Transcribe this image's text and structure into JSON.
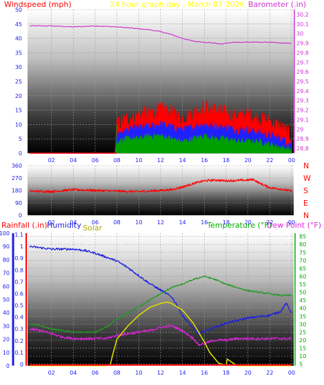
{
  "header": {
    "left_label": "Windspeed (mph)",
    "center_title": "24 hour graph day : March 07 2026",
    "right_label": "Barometer (.in)"
  },
  "colors": {
    "windspeed_label": "#ff0000",
    "title": "#ffff00",
    "barometer": "#cc33cc",
    "wind_avg": "#00a000",
    "wind_mid": "#2020ff",
    "wind_gust": "#ff0000",
    "direction": "#ff0000",
    "rainfall": "#ff0000",
    "humidity": "#2020dd",
    "solar": "#dddd00",
    "temperature": "#229922",
    "dewpoint": "#dd22dd",
    "right_axis_temp": "#00aa00",
    "axis_blue": "#1a1aee"
  },
  "bottom_header": {
    "rainfall_label": "Rainfall (.in)",
    "humidity_label": "Humidity",
    "solar_label": "Solar",
    "temperature_label": "Temperature (°F)",
    "dewpoint_label": "Dew Point (°F)"
  },
  "chart_data": [
    {
      "id": "wind-baro",
      "type": "line",
      "x_ticks": [
        "02",
        "04",
        "06",
        "08",
        "10",
        "12",
        "14",
        "16",
        "18",
        "20",
        "22",
        "00"
      ],
      "left_axis": {
        "ticks": [
          "0",
          "5",
          "10",
          "15",
          "20",
          "25",
          "30",
          "35",
          "40",
          "45",
          "50"
        ],
        "ylim": [
          0,
          50
        ]
      },
      "right_axis": {
        "ticks": [
          "28.8",
          "28.9",
          "29",
          "29.1",
          "29.2",
          "29.3",
          "29.4",
          "29.5",
          "29.6",
          "29.7",
          "29.8",
          "29.9",
          "30",
          "30.1",
          "30.2"
        ],
        "ylim": [
          28.75,
          30.25
        ]
      },
      "series": [
        {
          "key": "barometer",
          "axis": "right",
          "x": [
            0,
            2,
            4,
            6,
            8,
            10,
            11,
            12,
            13,
            14,
            15,
            16,
            17,
            17.5,
            18,
            19,
            20,
            21,
            22,
            23,
            24
          ],
          "values": [
            30.08,
            30.08,
            30.07,
            30.08,
            30.07,
            30.05,
            30.04,
            30.02,
            29.99,
            29.95,
            29.92,
            29.91,
            29.9,
            29.89,
            29.9,
            29.91,
            29.91,
            29.91,
            29.91,
            29.9,
            29.9
          ]
        },
        {
          "key": "wind_gust",
          "axis": "left",
          "x": [
            0,
            7.8,
            8,
            9,
            10,
            11,
            12,
            13,
            14,
            15,
            16,
            17,
            18,
            19,
            20,
            21,
            22,
            23,
            24
          ],
          "values": [
            0,
            0,
            10,
            12,
            13,
            14,
            15,
            14,
            12,
            14,
            16,
            15,
            14,
            13,
            13,
            12,
            11,
            9,
            6
          ]
        },
        {
          "key": "wind_mid",
          "axis": "left",
          "x": [
            0,
            7.8,
            8,
            9,
            10,
            11,
            12,
            13,
            14,
            15,
            16,
            17,
            18,
            19,
            20,
            21,
            22,
            23,
            24
          ],
          "values": [
            0,
            0,
            7,
            8,
            9,
            9,
            10,
            9,
            8,
            9,
            10,
            9,
            9,
            8,
            8,
            7,
            6,
            5,
            3
          ]
        },
        {
          "key": "wind_avg",
          "axis": "left",
          "x": [
            0,
            7.8,
            8,
            9,
            10,
            11,
            12,
            13,
            14,
            15,
            16,
            17,
            18,
            19,
            20,
            21,
            22,
            23,
            24
          ],
          "values": [
            0,
            0,
            4,
            5,
            5,
            6,
            6,
            5,
            4,
            5,
            6,
            5,
            5,
            4,
            4,
            4,
            3,
            2,
            1
          ]
        }
      ]
    },
    {
      "id": "wind-direction",
      "type": "line",
      "x_ticks": [
        "02",
        "04",
        "06",
        "08",
        "10",
        "12",
        "14",
        "16",
        "18",
        "20",
        "22",
        "00"
      ],
      "left_axis": {
        "ticks": [
          "0",
          "90",
          "180",
          "270",
          "360"
        ],
        "ylim": [
          0,
          360
        ]
      },
      "right_axis_labels": [
        "N",
        "W",
        "S",
        "E",
        "N"
      ],
      "series": [
        {
          "key": "direction",
          "x": [
            0,
            2,
            4,
            6,
            8,
            10,
            12,
            13,
            14,
            15,
            16,
            17,
            18,
            19,
            20,
            20.5,
            21,
            22,
            23,
            24
          ],
          "values": [
            175,
            172,
            185,
            180,
            175,
            172,
            180,
            185,
            205,
            230,
            250,
            255,
            250,
            252,
            255,
            260,
            235,
            200,
            190,
            175
          ]
        }
      ]
    },
    {
      "id": "temp-hum-solar-rain",
      "type": "line",
      "x_ticks": [
        "02",
        "04",
        "06",
        "08",
        "10",
        "12",
        "14",
        "16",
        "18",
        "20",
        "22",
        "00"
      ],
      "left_axis_rain": {
        "ticks": [
          "0",
          "10",
          "20",
          "30",
          "40",
          "50",
          "60",
          "70",
          "80",
          "90",
          "100"
        ]
      },
      "left_axis_humidity": {
        "ticks": [
          "0",
          "0.1",
          "0.2",
          "0.3",
          "0.4",
          "0.5",
          "0.6",
          "0.7",
          "0.8",
          "0.9",
          "1",
          "1.1"
        ]
      },
      "right_axis": {
        "ticks": [
          "5",
          "10",
          "15",
          "20",
          "25",
          "30",
          "35",
          "40",
          "45",
          "50",
          "55",
          "60",
          "65",
          "70",
          "75",
          "80",
          "85"
        ],
        "ylim": [
          4,
          87
        ]
      },
      "series": [
        {
          "key": "humidity",
          "axis": "pct",
          "x": [
            0,
            1,
            2,
            3,
            4,
            5,
            6,
            7,
            8,
            9,
            10,
            11,
            12,
            13,
            13.5,
            14,
            14.5,
            15,
            15.5,
            16,
            17,
            18,
            19,
            20,
            21,
            22,
            23,
            23.5,
            24
          ],
          "values": [
            90,
            89,
            88,
            88,
            88,
            87,
            85,
            82,
            79,
            74,
            68,
            62,
            57,
            52,
            46,
            38,
            33,
            28,
            24,
            26,
            29,
            32,
            34,
            36,
            37,
            38,
            41,
            47,
            40
          ]
        },
        {
          "key": "temperature",
          "axis": "right",
          "x": [
            0,
            1,
            2,
            3,
            4,
            5,
            6,
            7,
            8,
            9,
            10,
            11,
            12,
            13,
            14,
            15,
            16,
            17,
            18,
            19,
            20,
            21,
            22,
            23,
            24
          ],
          "values": [
            30,
            29,
            27,
            26,
            25,
            25,
            25,
            28,
            33,
            37,
            41,
            45,
            49,
            53,
            55,
            58,
            60,
            58,
            55,
            53,
            51,
            50,
            49,
            48,
            48
          ]
        },
        {
          "key": "dewpoint",
          "axis": "right",
          "x": [
            0,
            1,
            2,
            3,
            4,
            5,
            6,
            7,
            8,
            9,
            10,
            11,
            12,
            13,
            14,
            15,
            15.5,
            16,
            17,
            18,
            19,
            20,
            21,
            22,
            23,
            24
          ],
          "values": [
            27,
            26,
            24,
            22,
            21,
            21,
            21,
            21,
            23,
            24,
            25,
            26,
            28,
            29,
            26,
            21,
            17,
            18,
            20,
            20,
            21,
            21,
            21,
            21,
            21,
            21
          ]
        },
        {
          "key": "solar",
          "axis": "pct",
          "x": [
            0,
            6,
            7,
            7.4,
            7.6,
            8,
            9,
            10,
            11,
            12,
            12.6,
            13,
            14,
            15,
            16,
            16.5,
            17,
            17.3,
            18,
            18.1,
            19,
            24
          ],
          "values": [
            0,
            0,
            0,
            1,
            8,
            20,
            30,
            38,
            44,
            47,
            48,
            47,
            42,
            32,
            18,
            10,
            5,
            2,
            0,
            5,
            0,
            0
          ]
        },
        {
          "key": "rainfall",
          "axis": "pct",
          "x": [
            0,
            24
          ],
          "values": [
            0,
            0
          ]
        }
      ]
    }
  ]
}
